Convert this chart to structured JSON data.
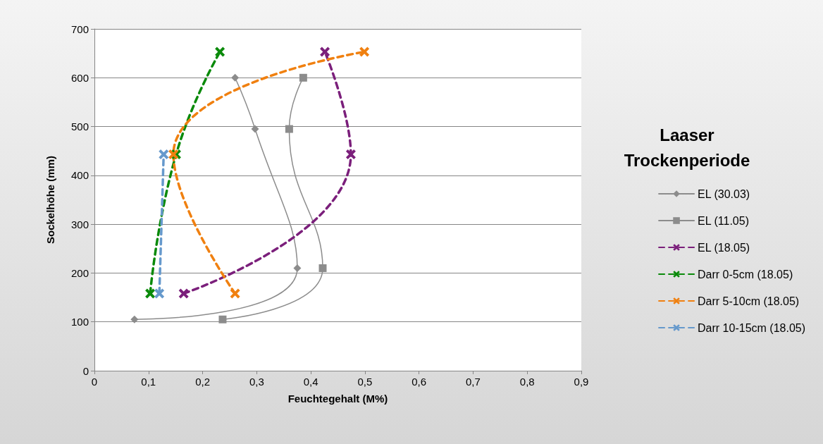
{
  "chart_data": {
    "type": "line",
    "xlabel": "Feuchtegehalt (M%)",
    "ylabel": "Sockelhöhe (mm)",
    "legend_title": "Laaser\nTrockenperiode",
    "legend": "right",
    "grid": "y",
    "xlim": [
      0,
      0.9
    ],
    "xticks": [
      0,
      {
        "value": 0.1,
        "label": "0,1"
      },
      {
        "value": 0.2,
        "label": "0,2"
      },
      {
        "value": 0.3,
        "label": "0,3"
      },
      {
        "value": 0.4,
        "label": "0,4"
      },
      {
        "value": 0.5,
        "label": "0,5"
      },
      {
        "value": 0.6,
        "label": "0,6"
      },
      {
        "value": 0.7,
        "label": "0,7"
      },
      {
        "value": 0.8,
        "label": "0,8"
      },
      {
        "value": 0.9,
        "label": "0,9"
      }
    ],
    "ylim": [
      0,
      700
    ],
    "yticks": [
      0,
      100,
      200,
      300,
      400,
      500,
      600,
      700
    ],
    "series": [
      {
        "name": "EL (30.03)",
        "color": "#8c8c8c",
        "marker": "diamond",
        "line_style": "solid",
        "x": [
          0.074,
          0.375,
          0.297,
          0.26
        ],
        "values": [
          105,
          210,
          495,
          600
        ]
      },
      {
        "name": "EL (11.05)",
        "color": "#8c8c8c",
        "marker": "square",
        "line_style": "solid",
        "x": [
          0.237,
          0.422,
          0.36,
          0.386
        ],
        "values": [
          105,
          210,
          495,
          600
        ]
      },
      {
        "name": "EL (18.05)",
        "color": "#7b1f7b",
        "marker": "cross",
        "line_style": "dashed",
        "x": [
          0.165,
          0.474,
          0.426
        ],
        "values": [
          158,
          443,
          653
        ]
      },
      {
        "name": "Darr 0-5cm (18.05)",
        "color": "#0a8a0a",
        "marker": "cross",
        "line_style": "dashed",
        "x": [
          0.103,
          0.151,
          0.232
        ],
        "values": [
          158,
          443,
          653
        ]
      },
      {
        "name": "Darr 5-10cm (18.05)",
        "color": "#f08010",
        "marker": "cross",
        "line_style": "dashed",
        "x": [
          0.26,
          0.146,
          0.499
        ],
        "values": [
          158,
          443,
          653
        ]
      },
      {
        "name": "Darr 10-15cm (18.05)",
        "color": "#6699cc",
        "marker": "cross",
        "line_style": "dashed",
        "x": [
          0.12,
          0.128
        ],
        "values": [
          158,
          443
        ]
      }
    ]
  }
}
